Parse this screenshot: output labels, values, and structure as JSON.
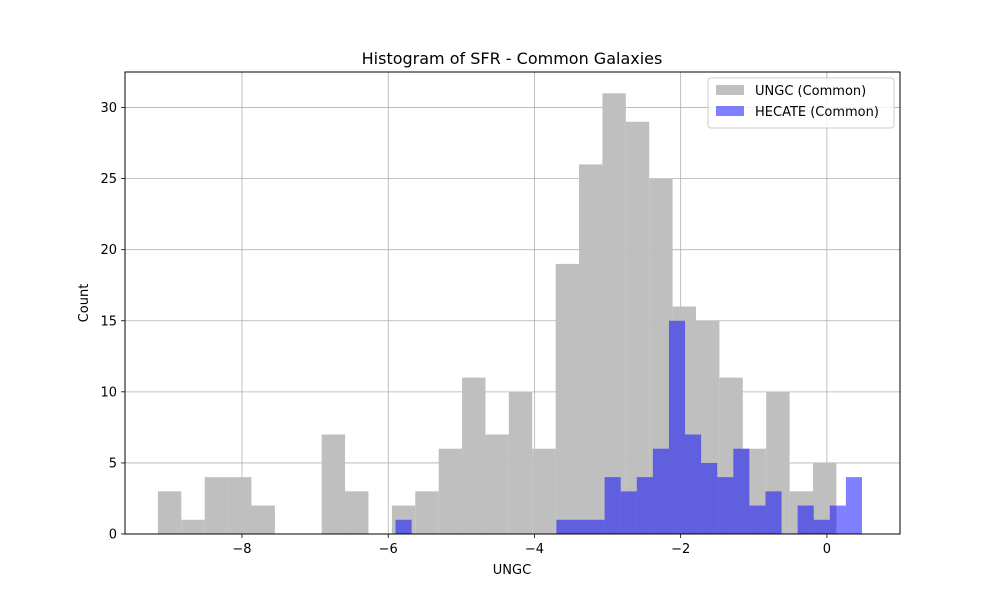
{
  "chart_data": {
    "type": "histogram",
    "title": "Histogram of SFR - Common Galaxies",
    "xlabel": "UNGC",
    "ylabel": "Count",
    "xlim": [
      -9.6,
      1.0
    ],
    "ylim": [
      0,
      32.5
    ],
    "xticks": [
      -8,
      -6,
      -4,
      -2,
      0
    ],
    "xtick_labels": [
      "−8",
      "−6",
      "−4",
      "−2",
      "0"
    ],
    "yticks": [
      0,
      5,
      10,
      15,
      20,
      25,
      30
    ],
    "ytick_labels": [
      "0",
      "5",
      "10",
      "15",
      "20",
      "25",
      "30"
    ],
    "grid": true,
    "legend_position": "top-right",
    "series": [
      {
        "name": "UNGC (Common)",
        "color": "#bfbfbf",
        "bin_edges": [
          -9.15,
          -8.83,
          -8.51,
          -8.19,
          -7.87,
          -7.55,
          -7.23,
          -6.91,
          -6.59,
          -6.27,
          -5.95,
          -5.63,
          -5.31,
          -4.99,
          -4.67,
          -4.35,
          -4.03,
          -3.71,
          -3.39,
          -3.07,
          -2.75,
          -2.43,
          -2.11,
          -1.79,
          -1.47,
          -1.15,
          -0.83,
          -0.51,
          -0.19,
          0.13,
          0.45
        ],
        "counts": [
          3,
          1,
          4,
          4,
          2,
          0,
          0,
          7,
          3,
          0,
          2,
          3,
          6,
          11,
          7,
          10,
          6,
          19,
          26,
          31,
          29,
          25,
          16,
          15,
          11,
          6,
          10,
          3,
          5,
          0
        ]
      },
      {
        "name": "HECATE (Common)",
        "color": "#0000ff",
        "opacity": 0.5,
        "bin_edges": [
          -5.9,
          -5.68,
          -5.46,
          -5.24,
          -5.02,
          -4.8,
          -4.58,
          -4.36,
          -4.14,
          -3.92,
          -3.7,
          -3.48,
          -3.26,
          -3.04,
          -2.82,
          -2.6,
          -2.38,
          -2.16,
          -1.94,
          -1.72,
          -1.5,
          -1.28,
          -1.06,
          -0.84,
          -0.62,
          -0.4,
          -0.18,
          0.04,
          0.26,
          0.48
        ],
        "counts": [
          1,
          0,
          0,
          0,
          0,
          0,
          0,
          0,
          0,
          0,
          1,
          1,
          1,
          4,
          3,
          4,
          6,
          15,
          7,
          5,
          4,
          6,
          2,
          3,
          0,
          2,
          1,
          2,
          4
        ]
      }
    ]
  }
}
